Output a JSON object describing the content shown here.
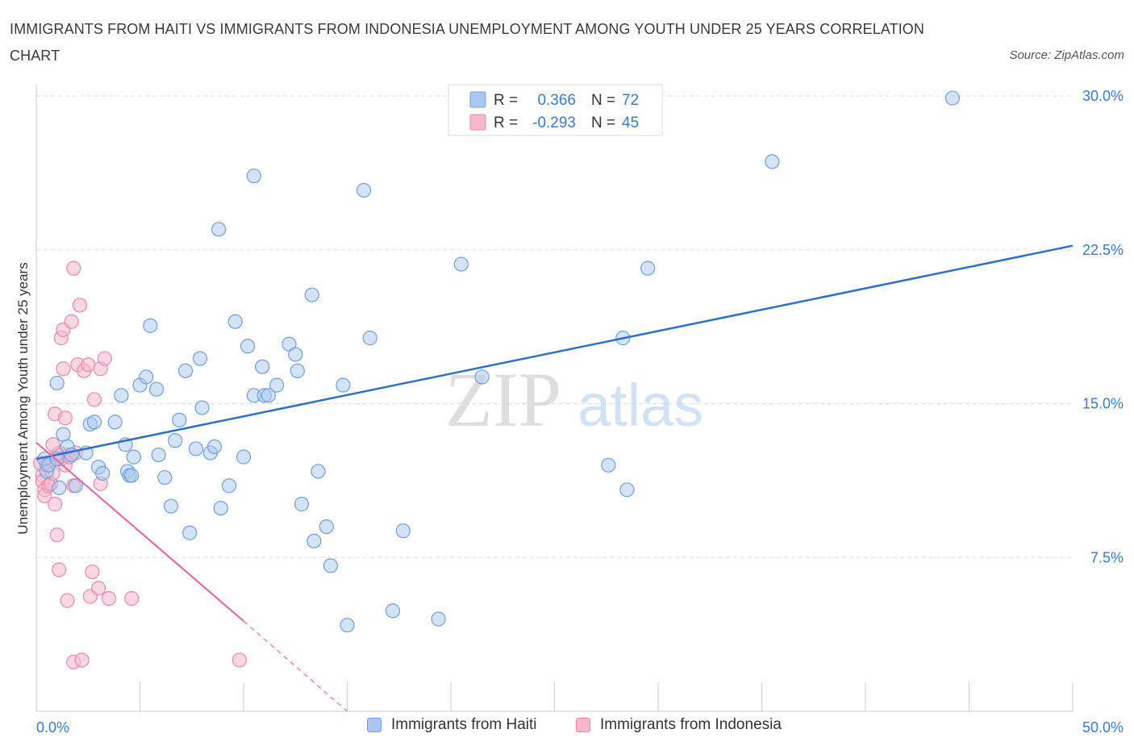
{
  "title": "IMMIGRANTS FROM HAITI VS IMMIGRANTS FROM INDONESIA UNEMPLOYMENT AMONG YOUTH UNDER 25 YEARS CORRELATION CHART",
  "source": "Source: ZipAtlas.com",
  "watermark": {
    "zip": "ZIP",
    "atlas": "atlas"
  },
  "colors": {
    "haiti_fill": "#a9c8f0",
    "haiti_stroke": "#6f9fe0",
    "haiti_line": "#2f6fcc",
    "indonesia_fill": "#f5b8cc",
    "indonesia_stroke": "#e98aa9",
    "indonesia_line": "#e0709a",
    "axis_label": "#3d78c9",
    "grid": "#dddddd"
  },
  "legend": {
    "rows": [
      {
        "r_label": "R =",
        "r_value": "0.366",
        "n_label": "N =",
        "n_value": "72"
      },
      {
        "r_label": "R =",
        "r_value": "-0.293",
        "n_label": "N =",
        "n_value": "45"
      }
    ]
  },
  "bottom_legend": {
    "haiti": "Immigrants from Haiti",
    "indonesia": "Immigrants from Indonesia"
  },
  "chart_data": {
    "type": "scatter",
    "title": "IMMIGRANTS FROM HAITI VS IMMIGRANTS FROM INDONESIA UNEMPLOYMENT AMONG YOUTH UNDER 25 YEARS CORRELATION CHART",
    "xlabel": "",
    "ylabel": "Unemployment Among Youth under 25 years",
    "xlim": [
      0,
      50
    ],
    "ylim": [
      0,
      30
    ],
    "x_tick_labels": [
      "0.0%",
      "50.0%"
    ],
    "y_ticks": [
      7.5,
      15.0,
      22.5,
      30.0
    ],
    "y_tick_labels": [
      "7.5%",
      "15.0%",
      "22.5%",
      "30.0%"
    ],
    "grid": true,
    "series": [
      {
        "name": "Immigrants from Haiti",
        "R": 0.366,
        "N": 72,
        "trend": {
          "x": [
            0,
            50
          ],
          "y": [
            12.3,
            22.7
          ]
        },
        "points": [
          [
            0.4,
            12.3
          ],
          [
            0.5,
            11.7
          ],
          [
            0.6,
            12.0
          ],
          [
            1.0,
            12.3
          ],
          [
            1.0,
            16.0
          ],
          [
            1.1,
            10.9
          ],
          [
            1.3,
            13.5
          ],
          [
            1.5,
            12.9
          ],
          [
            1.7,
            12.5
          ],
          [
            1.9,
            11.0
          ],
          [
            2.4,
            12.6
          ],
          [
            2.6,
            14.0
          ],
          [
            2.8,
            14.1
          ],
          [
            3.0,
            11.9
          ],
          [
            3.2,
            11.6
          ],
          [
            3.8,
            14.1
          ],
          [
            4.1,
            15.4
          ],
          [
            4.3,
            13.0
          ],
          [
            4.4,
            11.7
          ],
          [
            4.5,
            11.5
          ],
          [
            4.6,
            11.5
          ],
          [
            4.7,
            12.4
          ],
          [
            5.0,
            15.9
          ],
          [
            5.3,
            16.3
          ],
          [
            5.5,
            18.8
          ],
          [
            5.8,
            15.7
          ],
          [
            5.9,
            12.5
          ],
          [
            6.2,
            11.4
          ],
          [
            6.5,
            10.0
          ],
          [
            6.7,
            13.2
          ],
          [
            6.9,
            14.2
          ],
          [
            7.2,
            16.6
          ],
          [
            7.4,
            8.7
          ],
          [
            7.7,
            12.8
          ],
          [
            7.9,
            17.2
          ],
          [
            8.0,
            14.8
          ],
          [
            8.4,
            12.6
          ],
          [
            8.6,
            12.9
          ],
          [
            8.8,
            23.5
          ],
          [
            8.9,
            9.9
          ],
          [
            9.3,
            11.0
          ],
          [
            9.6,
            19.0
          ],
          [
            10.0,
            12.4
          ],
          [
            10.2,
            17.8
          ],
          [
            10.5,
            15.4
          ],
          [
            10.9,
            16.8
          ],
          [
            11.0,
            15.4
          ],
          [
            11.2,
            15.4
          ],
          [
            11.6,
            15.9
          ],
          [
            12.2,
            17.9
          ],
          [
            12.5,
            17.4
          ],
          [
            12.6,
            16.6
          ],
          [
            12.8,
            10.1
          ],
          [
            10.5,
            26.1
          ],
          [
            13.3,
            20.3
          ],
          [
            13.4,
            8.3
          ],
          [
            13.6,
            11.7
          ],
          [
            14.0,
            9.0
          ],
          [
            14.2,
            7.1
          ],
          [
            14.8,
            15.9
          ],
          [
            15.0,
            4.2
          ],
          [
            15.8,
            25.4
          ],
          [
            16.1,
            18.2
          ],
          [
            17.2,
            4.9
          ],
          [
            17.7,
            8.8
          ],
          [
            19.4,
            4.5
          ],
          [
            20.5,
            21.8
          ],
          [
            21.5,
            16.3
          ],
          [
            27.6,
            12.0
          ],
          [
            28.3,
            18.2
          ],
          [
            28.5,
            10.8
          ],
          [
            29.5,
            21.6
          ],
          [
            35.5,
            26.8
          ],
          [
            44.2,
            29.9
          ]
        ]
      },
      {
        "name": "Immigrants from Indonesia",
        "R": -0.293,
        "N": 45,
        "trend": {
          "x": [
            0,
            10
          ],
          "y": [
            13.1,
            4.4
          ]
        },
        "trend_dashed": {
          "x": [
            10,
            15
          ],
          "y": [
            4.4,
            0.0
          ]
        },
        "points": [
          [
            0.2,
            12.1
          ],
          [
            0.3,
            11.5
          ],
          [
            0.3,
            11.2
          ],
          [
            0.4,
            10.8
          ],
          [
            0.4,
            10.5
          ],
          [
            0.5,
            12.0
          ],
          [
            0.6,
            11.0
          ],
          [
            0.7,
            11.1
          ],
          [
            0.8,
            11.6
          ],
          [
            0.9,
            10.1
          ],
          [
            0.9,
            14.5
          ],
          [
            1.0,
            12.5
          ],
          [
            1.0,
            8.6
          ],
          [
            1.1,
            6.9
          ],
          [
            1.2,
            12.3
          ],
          [
            1.2,
            18.2
          ],
          [
            1.3,
            18.6
          ],
          [
            1.3,
            16.7
          ],
          [
            1.4,
            12.0
          ],
          [
            1.4,
            14.3
          ],
          [
            1.5,
            12.5
          ],
          [
            1.5,
            5.4
          ],
          [
            1.7,
            19.0
          ],
          [
            1.8,
            21.6
          ],
          [
            1.8,
            11.0
          ],
          [
            1.8,
            2.4
          ],
          [
            2.0,
            16.9
          ],
          [
            2.1,
            19.8
          ],
          [
            2.2,
            2.5
          ],
          [
            2.3,
            16.6
          ],
          [
            2.5,
            16.9
          ],
          [
            2.6,
            5.6
          ],
          [
            2.7,
            6.8
          ],
          [
            2.8,
            15.2
          ],
          [
            3.0,
            6.0
          ],
          [
            3.1,
            16.7
          ],
          [
            3.1,
            11.1
          ],
          [
            3.3,
            17.2
          ],
          [
            3.5,
            5.5
          ],
          [
            4.6,
            5.5
          ],
          [
            9.8,
            2.5
          ],
          [
            1.6,
            12.4
          ],
          [
            1.1,
            12.6
          ],
          [
            0.8,
            13.0
          ],
          [
            1.9,
            12.6
          ]
        ]
      }
    ]
  }
}
